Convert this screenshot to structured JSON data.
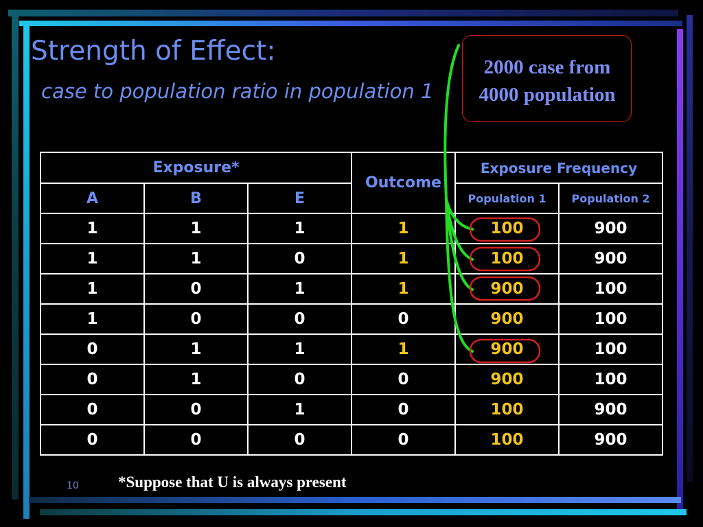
{
  "slide": {
    "title": "Strength of Effect:",
    "subtitle": "case to population ratio in population 1",
    "callout": {
      "line1": "2000 case from",
      "line2": "4000 population"
    },
    "footnote": "*Suppose that U is always present",
    "page_number": "10"
  },
  "table": {
    "group_header": "Exposure*",
    "outcome_header": "Outcome",
    "frequency_header": "Exposure Frequency",
    "columns": [
      "A",
      "B",
      "E"
    ],
    "populations": [
      "Population 1",
      "Population 2"
    ],
    "rows": [
      {
        "a": "1",
        "b": "1",
        "e": "1",
        "outcome": "1",
        "pop1": "100",
        "pop2": "900",
        "circled": true
      },
      {
        "a": "1",
        "b": "1",
        "e": "0",
        "outcome": "1",
        "pop1": "100",
        "pop2": "900",
        "circled": true
      },
      {
        "a": "1",
        "b": "0",
        "e": "1",
        "outcome": "1",
        "pop1": "900",
        "pop2": "100",
        "circled": true
      },
      {
        "a": "1",
        "b": "0",
        "e": "0",
        "outcome": "0",
        "pop1": "900",
        "pop2": "100",
        "circled": false
      },
      {
        "a": "0",
        "b": "1",
        "e": "1",
        "outcome": "1",
        "pop1": "900",
        "pop2": "100",
        "circled": true
      },
      {
        "a": "0",
        "b": "1",
        "e": "0",
        "outcome": "0",
        "pop1": "900",
        "pop2": "100",
        "circled": false
      },
      {
        "a": "0",
        "b": "0",
        "e": "1",
        "outcome": "0",
        "pop1": "100",
        "pop2": "900",
        "circled": false
      },
      {
        "a": "0",
        "b": "0",
        "e": "0",
        "outcome": "0",
        "pop1": "100",
        "pop2": "900",
        "circled": false
      }
    ]
  },
  "colors": {
    "title": "#6b8df0",
    "highlight_value": "#f2c417",
    "circle": "#d21f1f",
    "connector": "#22dd22",
    "border_cyan": "#1ec8e8",
    "border_purple": "#8a3cf0"
  }
}
